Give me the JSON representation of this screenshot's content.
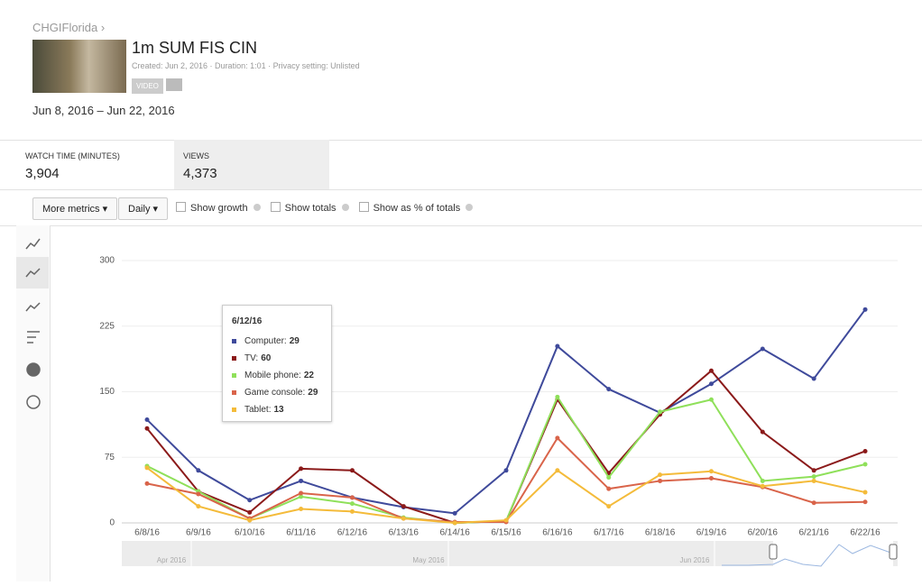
{
  "breadcrumb": "CHGIFlorida ›",
  "video": {
    "title": "1m SUM FIS CIN",
    "meta": "Created: Jun 2, 2016 · Duration: 1:01 · Privacy setting: Unlisted",
    "badge": "VIDEO"
  },
  "date_range": "Jun 8, 2016 – Jun 22, 2016",
  "metrics": [
    {
      "label": "WATCH TIME (MINUTES)",
      "value": "3,904"
    },
    {
      "label": "VIEWS",
      "value": "4,373"
    }
  ],
  "toolbar": {
    "more_metrics": "More metrics",
    "interval": "Daily",
    "checkboxes": [
      "Show growth",
      "Show totals",
      "Show as % of totals"
    ]
  },
  "tooltip": {
    "title": "6/12/16"
  },
  "navigator": {
    "labels": [
      "Apr 2016",
      "May 2016",
      "Jun 2016"
    ]
  },
  "chart_data": {
    "type": "line",
    "categories": [
      "6/8/16",
      "6/9/16",
      "6/10/16",
      "6/11/16",
      "6/12/16",
      "6/13/16",
      "6/14/16",
      "6/15/16",
      "6/16/16",
      "6/17/16",
      "6/18/16",
      "6/19/16",
      "6/20/16",
      "6/21/16",
      "6/22/16"
    ],
    "series": [
      {
        "name": "Computer",
        "color": "#3f4a9b",
        "values": [
          118,
          60,
          26,
          48,
          29,
          18,
          11,
          60,
          202,
          153,
          126,
          159,
          199,
          165,
          244
        ]
      },
      {
        "name": "TV",
        "color": "#8b1a1a",
        "values": [
          108,
          36,
          12,
          62,
          60,
          19,
          0,
          2,
          141,
          57,
          124,
          174,
          104,
          60,
          82
        ]
      },
      {
        "name": "Mobile phone",
        "color": "#8fe05a",
        "values": [
          65,
          36,
          5,
          30,
          22,
          6,
          0,
          2,
          144,
          52,
          127,
          141,
          48,
          53,
          67
        ]
      },
      {
        "name": "Game console",
        "color": "#d9644a",
        "values": [
          45,
          33,
          5,
          34,
          29,
          5,
          1,
          1,
          97,
          39,
          48,
          51,
          41,
          23,
          24
        ]
      },
      {
        "name": "Tablet",
        "color": "#f4bb3a",
        "values": [
          63,
          19,
          3,
          16,
          13,
          5,
          0,
          3,
          60,
          19,
          55,
          59,
          42,
          48,
          35
        ]
      }
    ],
    "ylim": [
      0,
      300
    ],
    "yticks": [
      0,
      75,
      150,
      225,
      300
    ],
    "grid": true
  }
}
